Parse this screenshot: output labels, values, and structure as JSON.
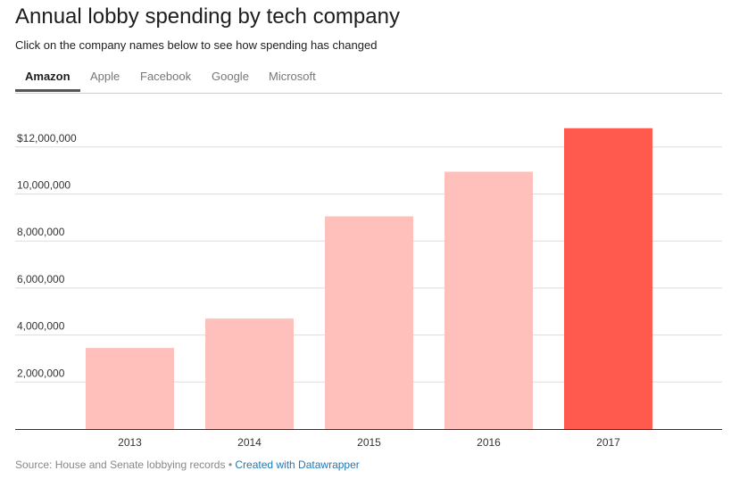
{
  "header": {
    "title": "Annual lobby spending by tech company",
    "subtitle": "Click on the company names below to see how spending has changed"
  },
  "tabs": [
    {
      "label": "Amazon",
      "active": true
    },
    {
      "label": "Apple",
      "active": false
    },
    {
      "label": "Facebook",
      "active": false
    },
    {
      "label": "Google",
      "active": false
    },
    {
      "label": "Microsoft",
      "active": false
    }
  ],
  "colors": {
    "bar_default": "#ffc0bb",
    "bar_highlight": "#ff5a4d",
    "gridline": "#dddddd",
    "baseline": "#333333",
    "link": "#1f78b4"
  },
  "chart_data": {
    "type": "bar",
    "title": "Annual lobby spending by tech company",
    "series_name": "Amazon",
    "categories": [
      "2013",
      "2014",
      "2015",
      "2016",
      "2017"
    ],
    "values": [
      3450000,
      4700000,
      9050000,
      10950000,
      12800000
    ],
    "highlighted_category": "2017",
    "xlabel": "",
    "ylabel": "",
    "ylim": [
      0,
      13000000
    ],
    "yticks": [
      2000000,
      4000000,
      6000000,
      8000000,
      10000000,
      12000000
    ],
    "ytick_labels": [
      "2,000,000",
      "4,000,000",
      "6,000,000",
      "8,000,000",
      "10,000,000",
      "$12,000,000"
    ],
    "grid": true,
    "legend": "none"
  },
  "footer": {
    "source": "Source: House and Senate lobbying records",
    "separator": " • ",
    "credit_link": "Created with Datawrapper"
  }
}
